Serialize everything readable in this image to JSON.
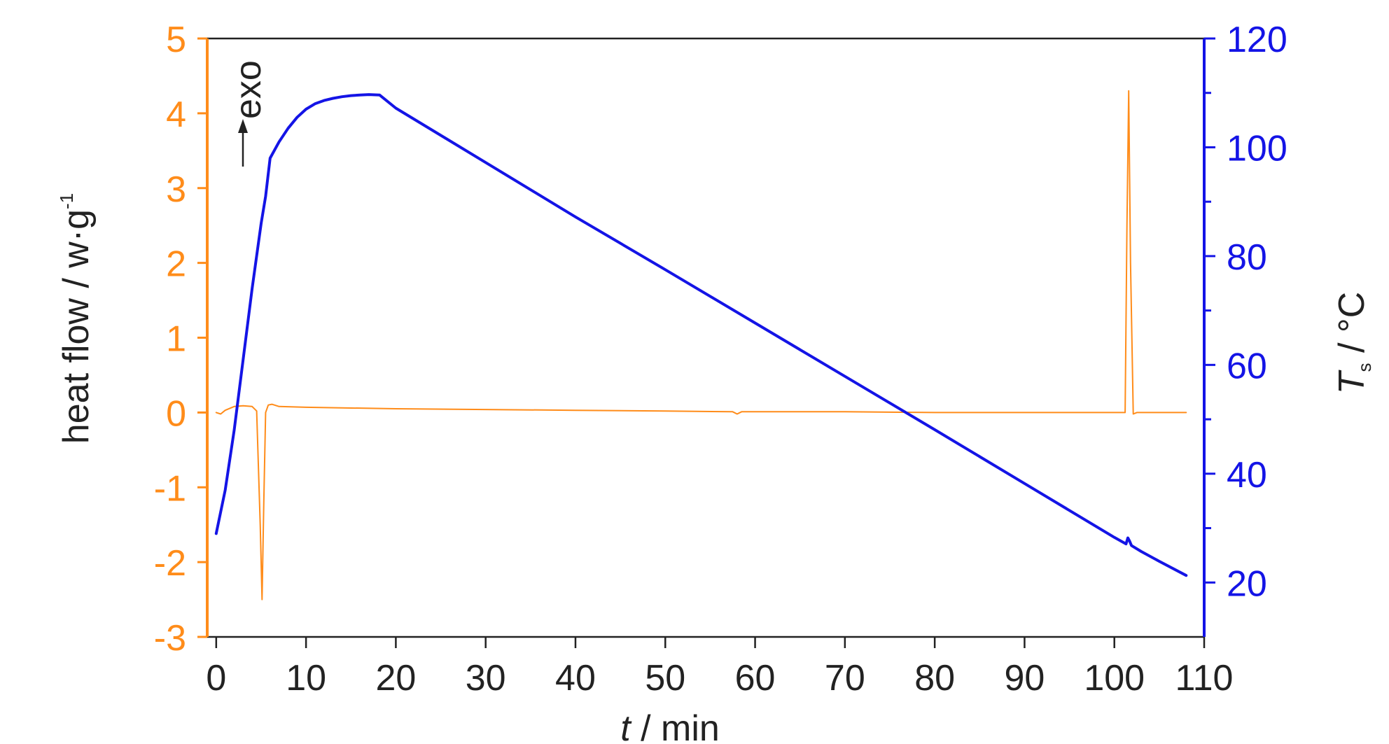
{
  "chart_data": {
    "type": "line",
    "colors": {
      "heat_flow": "#FF8C1A",
      "temperature": "#1414E6",
      "text": "#222222"
    },
    "x_axis": {
      "label_italic": "t",
      "label_rest": " / min",
      "lim": [
        -1,
        110
      ],
      "ticks": [
        0,
        10,
        20,
        30,
        40,
        50,
        60,
        70,
        80,
        90,
        100,
        110
      ]
    },
    "y_left": {
      "label": "heat flow / w·g",
      "label_sup": "-1",
      "lim": [
        -3,
        5
      ],
      "ticks": [
        -3,
        -2,
        -1,
        0,
        1,
        2,
        3,
        4,
        5
      ]
    },
    "y_right": {
      "label_italic": "T",
      "label_sub": "s",
      "label_rest": " / °C",
      "lim": [
        10,
        120
      ],
      "ticks": [
        20,
        40,
        60,
        80,
        100,
        120
      ],
      "minor_ticks": [
        30,
        50,
        70,
        90,
        110
      ]
    },
    "annotation": {
      "text": "exo"
    },
    "series": [
      {
        "axis": "left",
        "x": [
          0,
          0.5,
          1,
          2,
          3,
          4,
          4.5,
          4.9,
          5.1,
          5.3,
          5.5,
          5.8,
          6.2,
          7,
          10,
          20,
          30,
          40,
          50,
          57.5,
          58,
          58.5,
          70,
          80,
          90,
          100,
          101.2,
          101.4,
          101.6,
          101.8,
          102.1,
          102.5,
          104,
          108
        ],
        "y": [
          0.0,
          -0.02,
          0.03,
          0.08,
          0.09,
          0.08,
          0.02,
          -1.5,
          -2.5,
          -1.2,
          0.0,
          0.1,
          0.11,
          0.08,
          0.07,
          0.05,
          0.04,
          0.03,
          0.02,
          0.01,
          -0.02,
          0.01,
          0.01,
          0.0,
          0.0,
          0.0,
          0.0,
          2.5,
          4.3,
          2.0,
          -0.02,
          0.0,
          0.0,
          0.0
        ]
      },
      {
        "axis": "right",
        "x": [
          0,
          1,
          2,
          3,
          4,
          5,
          5.5,
          6,
          7,
          8,
          9,
          10,
          11,
          12,
          13,
          14,
          15,
          16,
          17,
          18.2,
          20,
          30,
          40,
          50,
          60,
          70,
          80,
          90,
          100,
          101.3,
          101.5,
          101.7,
          101.9,
          103,
          105,
          108
        ],
        "y": [
          29,
          37,
          48,
          61,
          74,
          86,
          91,
          98,
          101,
          103.5,
          105.5,
          107,
          108,
          108.6,
          109,
          109.3,
          109.5,
          109.6,
          109.7,
          109.6,
          107.2,
          97.2,
          87.2,
          77.5,
          67.7,
          57.9,
          48.1,
          38.2,
          28.3,
          27.1,
          28.2,
          27.6,
          26.8,
          25.7,
          23.9,
          21.3
        ]
      }
    ]
  }
}
